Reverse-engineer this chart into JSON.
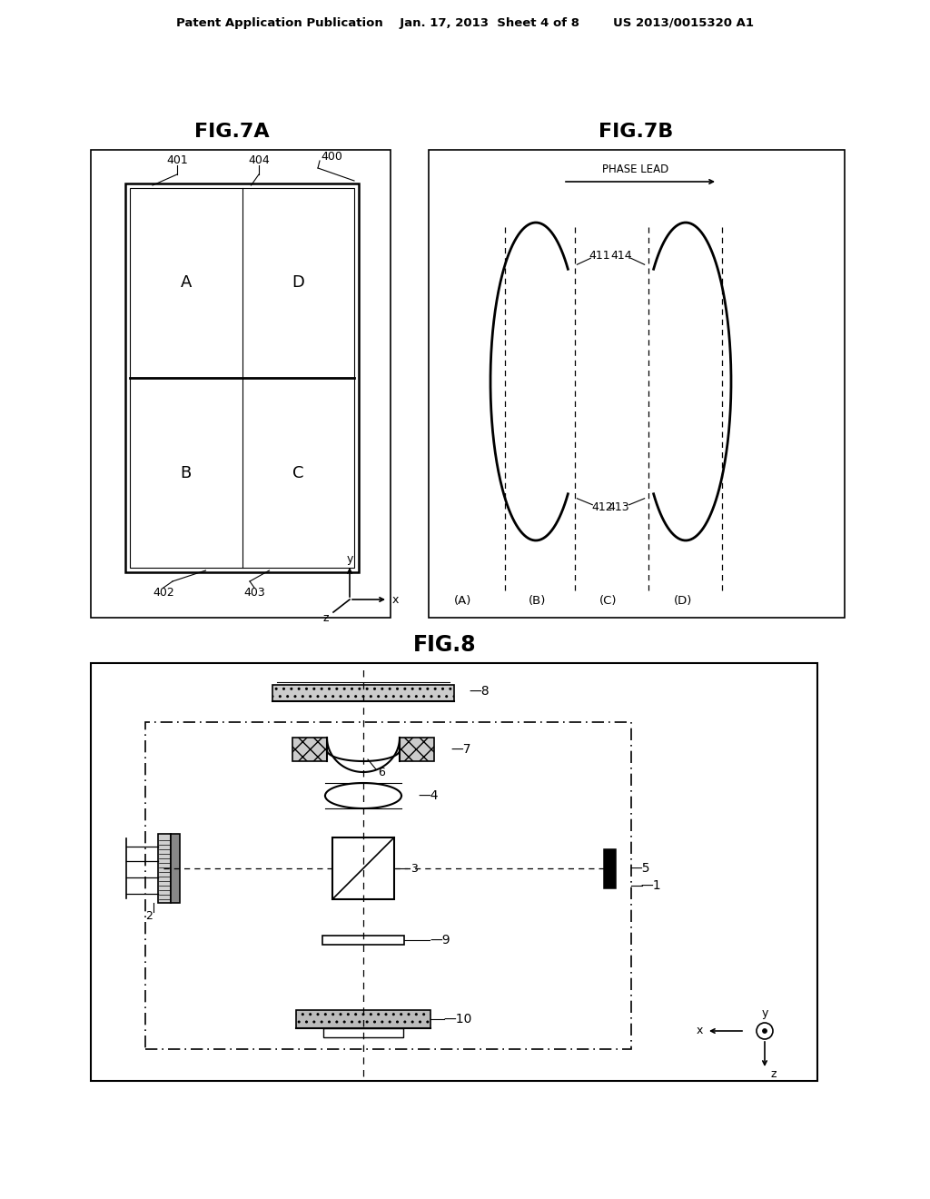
{
  "bg_color": "#ffffff",
  "header": "Patent Application Publication    Jan. 17, 2013  Sheet 4 of 8        US 2013/0015320 A1",
  "fig7a_title": "FIG.7A",
  "fig7b_title": "FIG.7B",
  "fig8_title": "FIG.8"
}
